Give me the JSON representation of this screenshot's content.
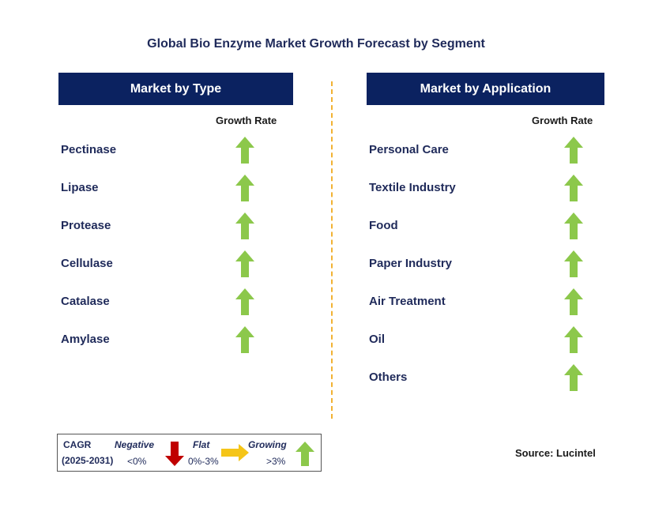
{
  "title": "Global Bio Enzyme Market Growth Forecast by Segment",
  "left_panel": {
    "header": "Market by Type",
    "growth_label": "Growth Rate",
    "items": [
      {
        "label": "Pectinase",
        "trend": "growing"
      },
      {
        "label": "Lipase",
        "trend": "growing"
      },
      {
        "label": "Protease",
        "trend": "growing"
      },
      {
        "label": "Cellulase",
        "trend": "growing"
      },
      {
        "label": "Catalase",
        "trend": "growing"
      },
      {
        "label": "Amylase",
        "trend": "growing"
      }
    ]
  },
  "right_panel": {
    "header": "Market by Application",
    "growth_label": "Growth Rate",
    "items": [
      {
        "label": "Personal Care",
        "trend": "growing"
      },
      {
        "label": "Textile Industry",
        "trend": "growing"
      },
      {
        "label": "Food",
        "trend": "growing"
      },
      {
        "label": "Paper Industry",
        "trend": "growing"
      },
      {
        "label": "Air Treatment",
        "trend": "growing"
      },
      {
        "label": "Oil",
        "trend": "growing"
      },
      {
        "label": "Others",
        "trend": "growing"
      }
    ]
  },
  "legend": {
    "cagr_label": "CAGR",
    "period": "(2025-2031)",
    "negative_label": "Negative",
    "negative_value": "<0%",
    "flat_label": "Flat",
    "flat_value": "0%-3%",
    "growing_label": "Growing",
    "growing_value": ">3%"
  },
  "source": "Source: Lucintel",
  "colors": {
    "header_bg": "#0b2260",
    "growing_arrow": "#8cc84b",
    "negative_arrow": "#c00000",
    "flat_arrow": "#f5c518",
    "divider": "#f2b233"
  }
}
